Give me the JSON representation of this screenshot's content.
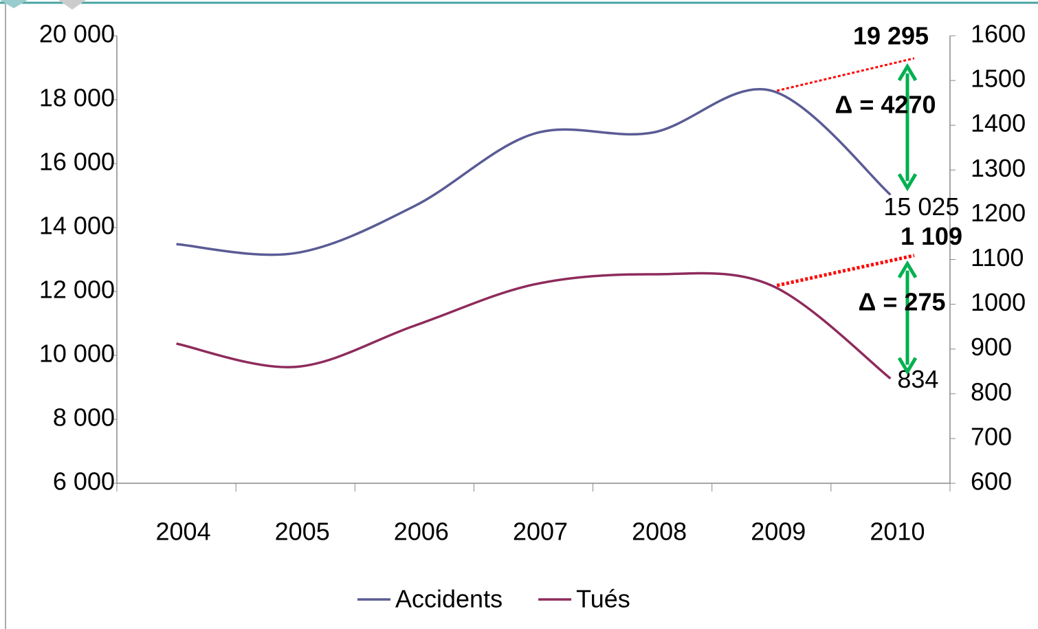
{
  "chart_data": {
    "type": "line",
    "categories": [
      "2004",
      "2005",
      "2006",
      "2007",
      "2008",
      "2009",
      "2010"
    ],
    "series": [
      {
        "name": "Accidents",
        "color": "#5a5b95",
        "axis": "y",
        "values": [
          13480,
          13200,
          14670,
          16930,
          16970,
          18280,
          15025
        ],
        "value_labels": [
          null,
          null,
          null,
          null,
          null,
          null,
          "15 025"
        ]
      },
      {
        "name": "Tués",
        "color": "#8e2b5c",
        "axis": "y2",
        "values": [
          912,
          860,
          952,
          1044,
          1067,
          1042,
          834
        ]
      }
    ],
    "ylim": [
      6000,
      20000
    ],
    "yticks": [
      {
        "value": 6000,
        "label": "6 000"
      },
      {
        "value": 8000,
        "label": "8 000"
      },
      {
        "value": 10000,
        "label": "10 000"
      },
      {
        "value": 12000,
        "label": "12 000"
      },
      {
        "value": 14000,
        "label": "14 000"
      },
      {
        "value": 16000,
        "label": "16 000"
      },
      {
        "value": 18000,
        "label": "18 000"
      },
      {
        "value": 20000,
        "label": "20 000"
      }
    ],
    "y2lim": [
      600,
      1600
    ],
    "y2ticks": [
      600,
      700,
      800,
      900,
      1000,
      1100,
      1200,
      1300,
      1400,
      1500,
      1600
    ],
    "grid": false,
    "legend": "bottom",
    "annotations": [
      {
        "text": "19 295",
        "value": 19295,
        "axis": "y",
        "color": "#ff0000"
      },
      {
        "text": "1 109",
        "value": 1109,
        "axis": "y2",
        "color": "#ff0000"
      },
      {
        "text": "Δ = 4270",
        "color": "#00b050"
      },
      {
        "text": "Δ = 275",
        "color": "#00b050"
      }
    ]
  }
}
